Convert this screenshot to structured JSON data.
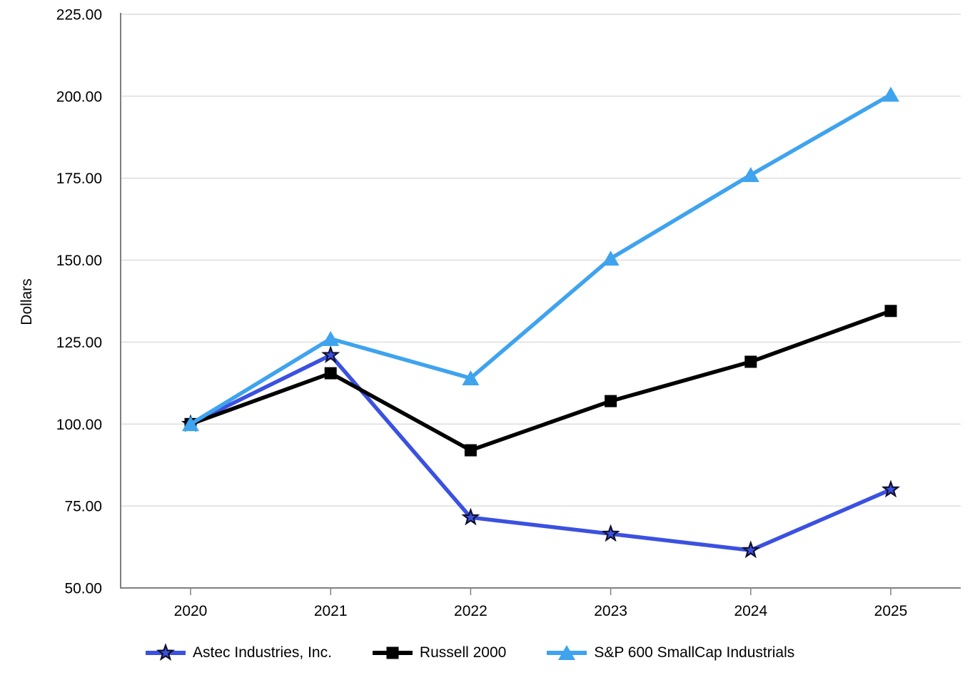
{
  "chart_data": {
    "type": "line",
    "title": "",
    "xlabel": "",
    "ylabel": "Dollars",
    "x": [
      "2020",
      "2021",
      "2022",
      "2023",
      "2024",
      "2025"
    ],
    "ylim": [
      50,
      225
    ],
    "ytick_step": 25,
    "ytick_labels": [
      "50.00",
      "75.00",
      "100.00",
      "125.00",
      "150.00",
      "175.00",
      "200.00",
      "225.00"
    ],
    "grid": "horizontal-gridlines",
    "legend_position": "bottom",
    "colors": {
      "gridline": "#DBDBDB",
      "axis": "#7F7F7F",
      "tick": "#7F7F7F",
      "text": "#000000"
    },
    "series": [
      {
        "id": "astec-industries",
        "name": "Astec Industries, Inc.",
        "marker": "star",
        "color": "#3B51E0",
        "marker_fill": "#3B51E0",
        "marker_stroke": "#10102E",
        "values": [
          100,
          121,
          71.5,
          66.5,
          61.5,
          80
        ]
      },
      {
        "id": "russell-2000",
        "name": "Russell 2000",
        "marker": "square",
        "color": "#000000",
        "marker_fill": "#000000",
        "marker_stroke": "#000000",
        "values": [
          100,
          115.5,
          92,
          107,
          119,
          134.5
        ]
      },
      {
        "id": "sp600-smallcap-industrials",
        "name": "S&P 600 SmallCap Industrials",
        "marker": "triangle",
        "color": "#3FA3EE",
        "marker_fill": "#3FA3EE",
        "marker_stroke": "#3FA3EE",
        "values": [
          100,
          126,
          114,
          150.5,
          176,
          200.5
        ]
      }
    ]
  }
}
